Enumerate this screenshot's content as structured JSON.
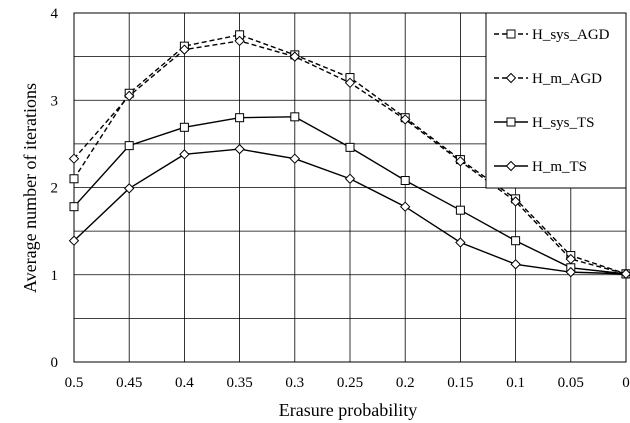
{
  "chart_data": {
    "type": "line",
    "xlabel": "Erasure probability",
    "ylabel": "Average number of iterations",
    "x_tick_labels": [
      "0.5",
      "0.45",
      "0.4",
      "0.35",
      "0.3",
      "0.25",
      "0.2",
      "0.15",
      "0.1",
      "0.05",
      "0"
    ],
    "x": [
      0.5,
      0.45,
      0.4,
      0.35,
      0.3,
      0.25,
      0.2,
      0.15,
      0.1,
      0.05,
      0
    ],
    "x_reversed": true,
    "y_tick_labels": [
      "0",
      "1",
      "2",
      "3",
      "4"
    ],
    "ylim": [
      0,
      4
    ],
    "grid": true,
    "legend_position": "top-right",
    "series": [
      {
        "name": "H_sys_AGD",
        "marker": "square",
        "line": "dashed",
        "values": [
          2.1,
          3.08,
          3.62,
          3.75,
          3.52,
          3.26,
          2.8,
          2.32,
          1.87,
          1.22,
          1.01
        ]
      },
      {
        "name": "H_m_AGD",
        "marker": "diamond",
        "line": "dashed",
        "values": [
          2.33,
          3.05,
          3.58,
          3.68,
          3.5,
          3.2,
          2.78,
          2.3,
          1.84,
          1.18,
          1.01
        ]
      },
      {
        "name": "H_sys_TS",
        "marker": "square",
        "line": "solid",
        "values": [
          1.78,
          2.48,
          2.69,
          2.8,
          2.81,
          2.46,
          2.08,
          1.74,
          1.39,
          1.08,
          1.01
        ]
      },
      {
        "name": "H_m_TS",
        "marker": "diamond",
        "line": "solid",
        "values": [
          1.39,
          1.99,
          2.38,
          2.44,
          2.33,
          2.1,
          1.78,
          1.37,
          1.12,
          1.03,
          1.01
        ]
      }
    ]
  }
}
